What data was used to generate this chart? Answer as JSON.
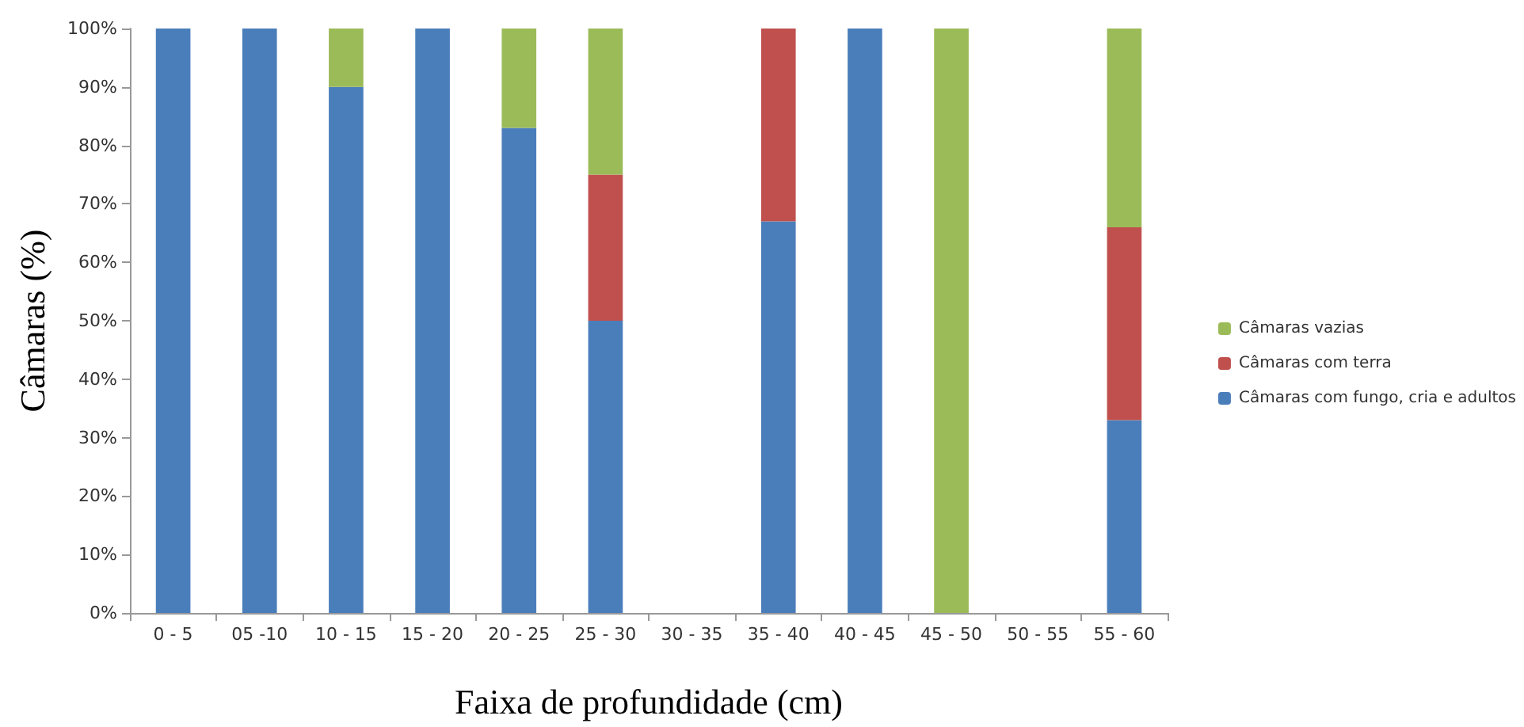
{
  "chart_data": {
    "type": "bar",
    "stacked": true,
    "xlabel": "Faixa de profundidade (cm)",
    "ylabel": "Câmaras (%)",
    "categories": [
      "0 - 5",
      "05 -10",
      "10 - 15",
      "15 - 20",
      "20 - 25",
      "25 - 30",
      "30 - 35",
      "35 - 40",
      "40 - 45",
      "45 - 50",
      "50 - 55",
      "55 - 60"
    ],
    "series": [
      {
        "name": "Câmaras com fungo, cria e adultos",
        "color": "#4a7ebb",
        "values": [
          100,
          100,
          90,
          100,
          83,
          50,
          null,
          67,
          100,
          null,
          null,
          33
        ]
      },
      {
        "name": "Câmaras com terra",
        "color": "#c0504d",
        "values": [
          null,
          null,
          null,
          null,
          null,
          25,
          null,
          33,
          null,
          null,
          null,
          33
        ]
      },
      {
        "name": "Câmaras vazias",
        "color": "#9bbb59",
        "values": [
          null,
          null,
          10,
          null,
          17,
          25,
          null,
          null,
          null,
          100,
          null,
          34
        ]
      }
    ],
    "ylim": [
      0,
      100
    ],
    "yticks": [
      {
        "value": 0,
        "label": "0%"
      },
      {
        "value": 10,
        "label": "10%"
      },
      {
        "value": 20,
        "label": "20%"
      },
      {
        "value": 30,
        "label": "30%"
      },
      {
        "value": 40,
        "label": "40%"
      },
      {
        "value": 50,
        "label": "50%"
      },
      {
        "value": 60,
        "label": "60%"
      },
      {
        "value": 70,
        "label": "70%"
      },
      {
        "value": 80,
        "label": "80%"
      },
      {
        "value": 90,
        "label": "90%"
      },
      {
        "value": 100,
        "label": "100%"
      }
    ],
    "grid": false,
    "legend": "right"
  }
}
